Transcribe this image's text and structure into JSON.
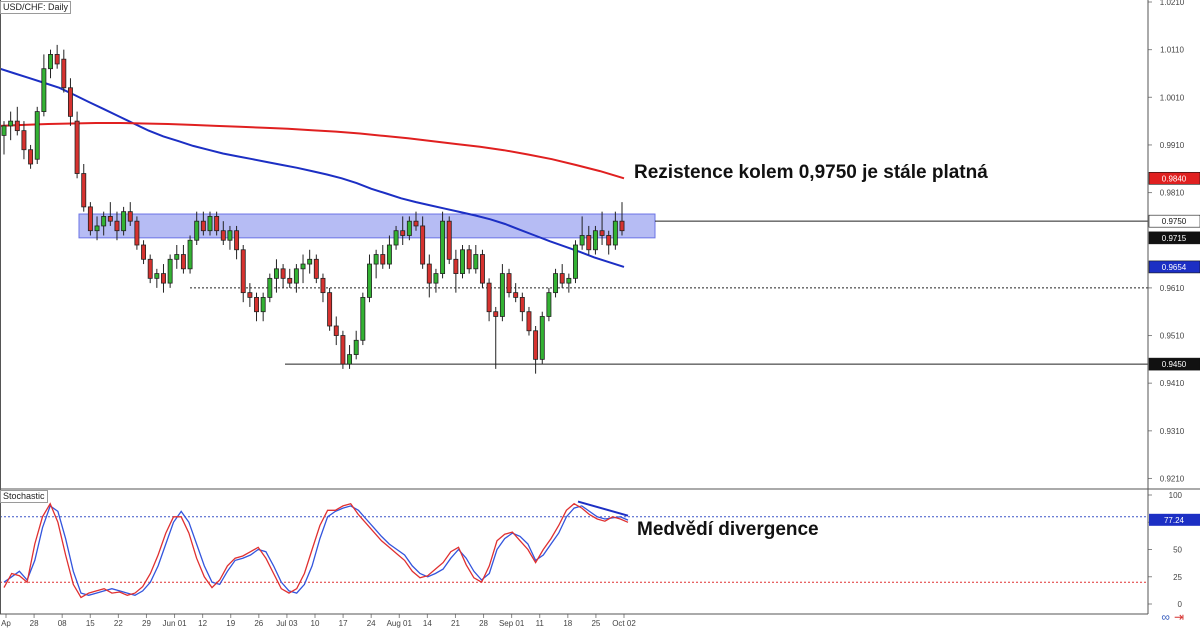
{
  "header": {
    "symbol_label": "USD/CHF: Daily",
    "indicator_label": "Stochastic"
  },
  "annotations": {
    "resistance_note": "Rezistence kolem 0,9750 je stále platná",
    "divergence_note": "Medvědí divergence"
  },
  "colors": {
    "bull": "#33b233",
    "bear": "#d6322f",
    "ma_fast": "#1c2fc4",
    "ma_slow": "#e02020",
    "zone": "#a9b0f2",
    "zone_border": "#6b73e6",
    "stoch_k": "#3355dd",
    "stoch_d": "#e03030",
    "hline": "#222222"
  },
  "price_axis": {
    "ticks": [
      "1.0210",
      "1.0110",
      "1.0010",
      "0.9910",
      "0.9810",
      "0.9610",
      "0.9510",
      "0.9410",
      "0.9310",
      "0.9210"
    ],
    "badges": [
      {
        "text": "0.9840",
        "value": 0.984,
        "bg": "#e02020",
        "fg": "#ffffff"
      },
      {
        "text": "0.9750",
        "value": 0.975,
        "bg": "#ffffff",
        "fg": "#111111"
      },
      {
        "text": "0.9715",
        "value": 0.9715,
        "bg": "#111111",
        "fg": "#ffffff"
      },
      {
        "text": "0.9654",
        "value": 0.9654,
        "bg": "#1c2fc4",
        "fg": "#ffffff"
      },
      {
        "text": "0.9450",
        "value": 0.945,
        "bg": "#111111",
        "fg": "#ffffff"
      }
    ]
  },
  "stoch_axis": {
    "ticks": [
      "100",
      "75",
      "50",
      "25",
      "0"
    ],
    "badge": {
      "text": "77.24",
      "value": 77.24,
      "bg": "#1c2fc4",
      "fg": "#ffffff"
    }
  },
  "date_axis": {
    "labels": [
      "Ap",
      "28",
      "08",
      "15",
      "22",
      "29",
      "Jun 01",
      "12",
      "19",
      "26",
      "Jul 03",
      "10",
      "17",
      "24",
      "Aug 01",
      "14",
      "21",
      "28",
      "Sep 01",
      "11",
      "18",
      "25",
      "Oct 02"
    ]
  },
  "chart_data": [
    {
      "type": "candlestick",
      "title": "USD/CHF: Daily",
      "ylim": [
        0.919,
        1.021
      ],
      "horizontal_levels": [
        0.975,
        0.961,
        0.945
      ],
      "resistance_zone": [
        0.9715,
        0.9765
      ],
      "ohlc": [
        [
          0.993,
          0.996,
          0.989,
          0.995
        ],
        [
          0.995,
          0.998,
          0.992,
          0.996
        ],
        [
          0.996,
          0.999,
          0.993,
          0.994
        ],
        [
          0.994,
          0.996,
          0.988,
          0.99
        ],
        [
          0.99,
          0.991,
          0.986,
          0.987
        ],
        [
          0.988,
          0.999,
          0.987,
          0.998
        ],
        [
          0.998,
          1.01,
          0.997,
          1.007
        ],
        [
          1.007,
          1.011,
          1.005,
          1.01
        ],
        [
          1.01,
          1.012,
          1.007,
          1.008
        ],
        [
          1.009,
          1.011,
          1.002,
          1.003
        ],
        [
          1.003,
          1.005,
          0.995,
          0.997
        ],
        [
          0.996,
          0.998,
          0.984,
          0.985
        ],
        [
          0.985,
          0.987,
          0.977,
          0.978
        ],
        [
          0.978,
          0.979,
          0.972,
          0.973
        ],
        [
          0.973,
          0.976,
          0.971,
          0.974
        ],
        [
          0.974,
          0.977,
          0.972,
          0.976
        ],
        [
          0.976,
          0.979,
          0.974,
          0.975
        ],
        [
          0.975,
          0.977,
          0.971,
          0.973
        ],
        [
          0.973,
          0.978,
          0.972,
          0.977
        ],
        [
          0.977,
          0.979,
          0.974,
          0.975
        ],
        [
          0.975,
          0.976,
          0.969,
          0.97
        ],
        [
          0.97,
          0.971,
          0.966,
          0.967
        ],
        [
          0.967,
          0.968,
          0.962,
          0.963
        ],
        [
          0.963,
          0.965,
          0.961,
          0.964
        ],
        [
          0.964,
          0.966,
          0.96,
          0.962
        ],
        [
          0.962,
          0.968,
          0.961,
          0.967
        ],
        [
          0.967,
          0.97,
          0.965,
          0.968
        ],
        [
          0.968,
          0.97,
          0.964,
          0.965
        ],
        [
          0.965,
          0.972,
          0.964,
          0.971
        ],
        [
          0.971,
          0.977,
          0.97,
          0.975
        ],
        [
          0.975,
          0.977,
          0.972,
          0.973
        ],
        [
          0.973,
          0.977,
          0.972,
          0.976
        ],
        [
          0.976,
          0.977,
          0.972,
          0.973
        ],
        [
          0.973,
          0.975,
          0.97,
          0.971
        ],
        [
          0.971,
          0.974,
          0.969,
          0.973
        ],
        [
          0.973,
          0.974,
          0.967,
          0.969
        ],
        [
          0.969,
          0.97,
          0.958,
          0.96
        ],
        [
          0.96,
          0.962,
          0.957,
          0.959
        ],
        [
          0.959,
          0.96,
          0.954,
          0.956
        ],
        [
          0.956,
          0.96,
          0.954,
          0.959
        ],
        [
          0.959,
          0.964,
          0.958,
          0.963
        ],
        [
          0.963,
          0.967,
          0.96,
          0.965
        ],
        [
          0.965,
          0.966,
          0.961,
          0.963
        ],
        [
          0.963,
          0.965,
          0.961,
          0.962
        ],
        [
          0.962,
          0.966,
          0.96,
          0.965
        ],
        [
          0.965,
          0.968,
          0.962,
          0.966
        ],
        [
          0.966,
          0.969,
          0.964,
          0.967
        ],
        [
          0.967,
          0.968,
          0.962,
          0.963
        ],
        [
          0.963,
          0.964,
          0.958,
          0.96
        ],
        [
          0.96,
          0.961,
          0.952,
          0.953
        ],
        [
          0.953,
          0.955,
          0.949,
          0.951
        ],
        [
          0.951,
          0.952,
          0.944,
          0.945
        ],
        [
          0.945,
          0.949,
          0.944,
          0.947
        ],
        [
          0.947,
          0.952,
          0.946,
          0.95
        ],
        [
          0.95,
          0.96,
          0.949,
          0.959
        ],
        [
          0.959,
          0.968,
          0.958,
          0.966
        ],
        [
          0.966,
          0.969,
          0.963,
          0.968
        ],
        [
          0.968,
          0.97,
          0.965,
          0.966
        ],
        [
          0.966,
          0.972,
          0.965,
          0.97
        ],
        [
          0.97,
          0.974,
          0.969,
          0.973
        ],
        [
          0.973,
          0.976,
          0.97,
          0.972
        ],
        [
          0.972,
          0.976,
          0.971,
          0.975
        ],
        [
          0.975,
          0.977,
          0.973,
          0.974
        ],
        [
          0.974,
          0.976,
          0.965,
          0.966
        ],
        [
          0.966,
          0.968,
          0.959,
          0.962
        ],
        [
          0.962,
          0.965,
          0.96,
          0.964
        ],
        [
          0.964,
          0.977,
          0.963,
          0.975
        ],
        [
          0.975,
          0.976,
          0.966,
          0.967
        ],
        [
          0.967,
          0.969,
          0.96,
          0.964
        ],
        [
          0.964,
          0.97,
          0.963,
          0.969
        ],
        [
          0.969,
          0.97,
          0.964,
          0.965
        ],
        [
          0.965,
          0.97,
          0.964,
          0.968
        ],
        [
          0.968,
          0.969,
          0.961,
          0.962
        ],
        [
          0.962,
          0.963,
          0.954,
          0.956
        ],
        [
          0.956,
          0.957,
          0.944,
          0.955
        ],
        [
          0.955,
          0.966,
          0.954,
          0.964
        ],
        [
          0.964,
          0.965,
          0.959,
          0.96
        ],
        [
          0.96,
          0.962,
          0.958,
          0.959
        ],
        [
          0.959,
          0.96,
          0.954,
          0.956
        ],
        [
          0.956,
          0.957,
          0.951,
          0.952
        ],
        [
          0.952,
          0.953,
          0.943,
          0.946
        ],
        [
          0.946,
          0.956,
          0.945,
          0.955
        ],
        [
          0.955,
          0.961,
          0.954,
          0.96
        ],
        [
          0.96,
          0.965,
          0.959,
          0.964
        ],
        [
          0.964,
          0.966,
          0.961,
          0.962
        ],
        [
          0.962,
          0.964,
          0.96,
          0.963
        ],
        [
          0.963,
          0.971,
          0.962,
          0.97
        ],
        [
          0.97,
          0.976,
          0.969,
          0.972
        ],
        [
          0.972,
          0.974,
          0.968,
          0.969
        ],
        [
          0.969,
          0.974,
          0.968,
          0.973
        ],
        [
          0.973,
          0.977,
          0.97,
          0.972
        ],
        [
          0.972,
          0.973,
          0.968,
          0.97
        ],
        [
          0.97,
          0.977,
          0.969,
          0.975
        ],
        [
          0.975,
          0.979,
          0.972,
          0.973
        ]
      ],
      "series": [
        {
          "name": "",
          "type": "line",
          "color": "#1c2fc4",
          "values": [
            1.007,
            1.006,
            1.005,
            1.004,
            1.003,
            1.0015,
            1.0,
            0.9985,
            0.997,
            0.9955,
            0.994,
            0.9928,
            0.9918,
            0.9908,
            0.99,
            0.9892,
            0.9886,
            0.988,
            0.9874,
            0.9868,
            0.9862,
            0.9855,
            0.9848,
            0.984,
            0.983,
            0.9818,
            0.9808,
            0.9798,
            0.979,
            0.9783,
            0.9776,
            0.9769,
            0.9762,
            0.9754,
            0.9744,
            0.9732,
            0.972,
            0.9708,
            0.9697,
            0.9686,
            0.9674,
            0.9664,
            0.9654
          ]
        },
        {
          "name": "",
          "type": "line",
          "color": "#e02020",
          "values": [
            0.995,
            0.9952,
            0.9954,
            0.9955,
            0.9956,
            0.9956,
            0.9955,
            0.9954,
            0.9952,
            0.995,
            0.9948,
            0.9946,
            0.9944,
            0.9941,
            0.9938,
            0.9934,
            0.9929,
            0.9924,
            0.9918,
            0.9912,
            0.9906,
            0.9899,
            0.989,
            0.988,
            0.9868,
            0.9855,
            0.984
          ]
        }
      ]
    },
    {
      "type": "line",
      "title": "Stochastic",
      "ylim": [
        0,
        100
      ],
      "levels": [
        80,
        20
      ],
      "series": [
        {
          "name": "",
          "color": "#3355dd",
          "values": [
            20,
            25,
            30,
            22,
            40,
            70,
            90,
            85,
            60,
            30,
            10,
            8,
            10,
            12,
            14,
            12,
            10,
            8,
            12,
            20,
            35,
            55,
            75,
            85,
            75,
            55,
            35,
            20,
            18,
            30,
            40,
            42,
            45,
            50,
            48,
            35,
            20,
            12,
            10,
            18,
            35,
            60,
            80,
            85,
            88,
            90,
            86,
            78,
            70,
            62,
            55,
            50,
            45,
            35,
            28,
            25,
            28,
            32,
            42,
            50,
            42,
            30,
            22,
            28,
            50,
            60,
            65,
            62,
            55,
            40,
            45,
            55,
            65,
            80,
            88,
            90,
            85,
            80,
            78,
            79,
            80,
            77
          ]
        },
        {
          "name": "",
          "color": "#e03030",
          "values": [
            15,
            28,
            26,
            20,
            55,
            80,
            92,
            75,
            45,
            18,
            6,
            10,
            12,
            14,
            10,
            11,
            8,
            10,
            16,
            28,
            45,
            65,
            80,
            80,
            65,
            42,
            25,
            15,
            22,
            35,
            42,
            44,
            48,
            52,
            42,
            28,
            14,
            10,
            14,
            28,
            50,
            72,
            86,
            86,
            90,
            92,
            82,
            74,
            66,
            58,
            52,
            46,
            40,
            30,
            24,
            26,
            32,
            38,
            48,
            52,
            36,
            24,
            20,
            35,
            58,
            64,
            66,
            58,
            50,
            38,
            50,
            60,
            72,
            86,
            92,
            88,
            82,
            78,
            76,
            80,
            78,
            75
          ]
        }
      ]
    }
  ]
}
